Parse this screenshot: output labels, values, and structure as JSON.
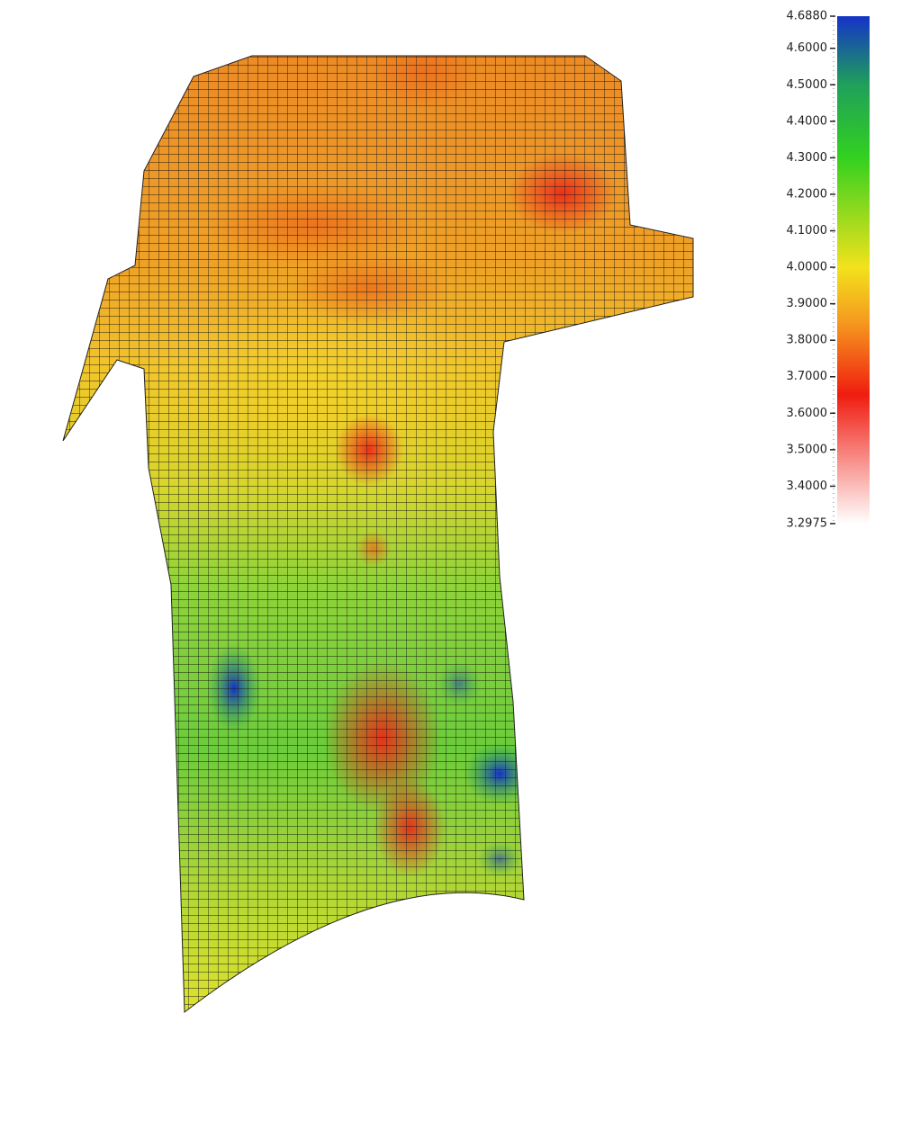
{
  "colorbar": {
    "lim": [
      3.2975,
      4.688
    ],
    "ticks": [
      {
        "value": 4.688,
        "label": "4.6880"
      },
      {
        "value": 4.6,
        "label": "4.6000"
      },
      {
        "value": 4.5,
        "label": "4.5000"
      },
      {
        "value": 4.4,
        "label": "4.4000"
      },
      {
        "value": 4.3,
        "label": "4.3000"
      },
      {
        "value": 4.2,
        "label": "4.2000"
      },
      {
        "value": 4.1,
        "label": "4.1000"
      },
      {
        "value": 4.0,
        "label": "4.0000"
      },
      {
        "value": 3.9,
        "label": "3.9000"
      },
      {
        "value": 3.8,
        "label": "3.8000"
      },
      {
        "value": 3.7,
        "label": "3.7000"
      },
      {
        "value": 3.6,
        "label": "3.6000"
      },
      {
        "value": 3.5,
        "label": "3.5000"
      },
      {
        "value": 3.4,
        "label": "3.4000"
      },
      {
        "value": 3.2975,
        "label": "3.2975"
      }
    ],
    "colormap": [
      {
        "value": 4.688,
        "color": "#1533c8"
      },
      {
        "value": 4.5,
        "color": "#1fa05a"
      },
      {
        "value": 4.3,
        "color": "#33d11f"
      },
      {
        "value": 4.0,
        "color": "#f2e21c"
      },
      {
        "value": 3.85,
        "color": "#f59a1e"
      },
      {
        "value": 3.65,
        "color": "#f01c10"
      },
      {
        "value": 3.2975,
        "color": "#ffffff"
      }
    ]
  }
}
